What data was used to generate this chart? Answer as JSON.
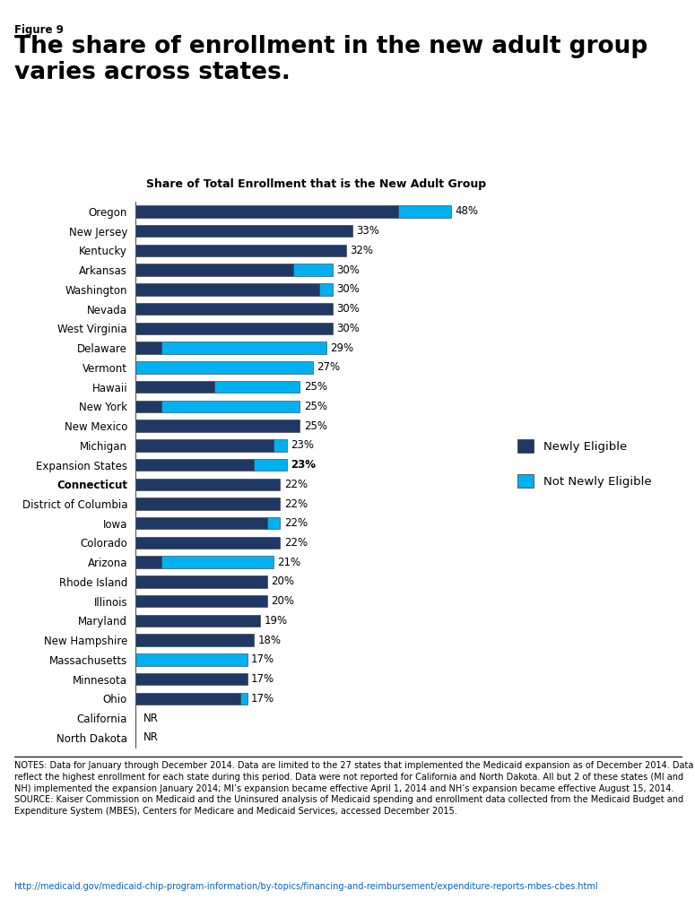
{
  "figure_label": "Figure 9",
  "main_title": "The share of enrollment in the new adult group\nvaries across states.",
  "chart_title": "Share of Total Enrollment that is the New Adult Group",
  "states": [
    "Oregon",
    "New Jersey",
    "Kentucky",
    "Arkansas",
    "Washington",
    "Nevada",
    "West Virginia",
    "Delaware",
    "Vermont",
    "Hawaii",
    "New York",
    "New Mexico",
    "Michigan",
    "Expansion States",
    "Connecticut",
    "District of Columbia",
    "Iowa",
    "Colorado",
    "Arizona",
    "Rhode Island",
    "Illinois",
    "Maryland",
    "New Hampshire",
    "Massachusetts",
    "Minnesota",
    "Ohio",
    "California",
    "North Dakota"
  ],
  "newly_eligible": [
    40,
    33,
    32,
    24,
    28,
    30,
    30,
    4,
    0,
    12,
    4,
    25,
    21,
    18,
    22,
    22,
    20,
    22,
    4,
    20,
    20,
    19,
    18,
    0,
    17,
    16,
    0,
    0
  ],
  "not_newly_eligible": [
    8,
    0,
    0,
    6,
    2,
    0,
    0,
    25,
    27,
    13,
    21,
    0,
    2,
    5,
    0,
    0,
    2,
    0,
    17,
    0,
    0,
    0,
    0,
    17,
    0,
    1,
    0,
    0
  ],
  "labels": [
    "48%",
    "33%",
    "32%",
    "30%",
    "30%",
    "30%",
    "30%",
    "29%",
    "27%",
    "25%",
    "25%",
    "25%",
    "23%",
    "23%",
    "22%",
    "22%",
    "22%",
    "22%",
    "21%",
    "20%",
    "20%",
    "19%",
    "18%",
    "17%",
    "17%",
    "17%",
    "NR",
    "NR"
  ],
  "bold_rows": [
    13
  ],
  "nr_rows": [
    26,
    27
  ],
  "color_newly": "#1f3864",
  "color_not_newly": "#00b0f0",
  "notes_source": "NOTES: Data for January through December 2014. Data are limited to the 27 states that implemented the Medicaid expansion as of December 2014. Data reflect the highest enrollment for each state during this period. Data were not reported for California and North Dakota. All but 2 of these states (MI and NH) implemented the expansion January 2014; MI’s expansion became effective April 1, 2014 and NH’s expansion became effective August 15, 2014.\nSOURCE: Kaiser Commission on Medicaid and the Uninsured analysis of Medicaid spending and enrollment data collected from the Medicaid Budget and Expenditure System (MBES), Centers for Medicare and Medicaid Services, accessed December 2015.",
  "url": "http://medicaid.gov/medicaid-chip-program-information/by-topics/financing-and-reimbursement/expenditure-reports-mbes-cbes.html"
}
